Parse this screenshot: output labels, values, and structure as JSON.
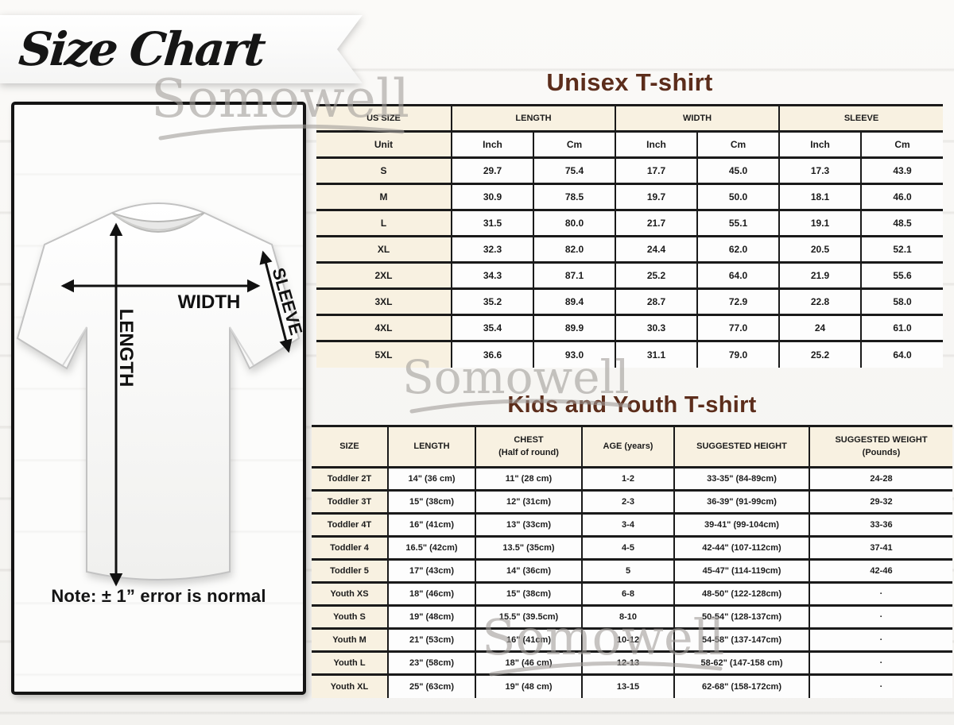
{
  "page_title": "Size Chart",
  "brand_watermark": "Somowell",
  "colors": {
    "title_brown": "#5c2d1b",
    "cream_cell": "#f8f1e1",
    "table_line": "#1a1a1a",
    "watermark_gray": "#a29e9a"
  },
  "diagram": {
    "width_label": "WIDTH",
    "length_label": "LENGTH",
    "sleeve_label": "SLEEVE",
    "note": "Note: ± 1” error is normal"
  },
  "unisex_table": {
    "title": "Unisex T-shirt",
    "col_groups": [
      "US SIZE",
      "LENGTH",
      "WIDTH",
      "SLEEVE"
    ],
    "unit_label": "Unit",
    "units": [
      "Inch",
      "Cm",
      "Inch",
      "Cm",
      "Inch",
      "Cm"
    ],
    "rows": [
      {
        "size": "S",
        "values": [
          "29.7",
          "75.4",
          "17.7",
          "45.0",
          "17.3",
          "43.9"
        ]
      },
      {
        "size": "M",
        "values": [
          "30.9",
          "78.5",
          "19.7",
          "50.0",
          "18.1",
          "46.0"
        ]
      },
      {
        "size": "L",
        "values": [
          "31.5",
          "80.0",
          "21.7",
          "55.1",
          "19.1",
          "48.5"
        ]
      },
      {
        "size": "XL",
        "values": [
          "32.3",
          "82.0",
          "24.4",
          "62.0",
          "20.5",
          "52.1"
        ]
      },
      {
        "size": "2XL",
        "values": [
          "34.3",
          "87.1",
          "25.2",
          "64.0",
          "21.9",
          "55.6"
        ]
      },
      {
        "size": "3XL",
        "values": [
          "35.2",
          "89.4",
          "28.7",
          "72.9",
          "22.8",
          "58.0"
        ]
      },
      {
        "size": "4XL",
        "values": [
          "35.4",
          "89.9",
          "30.3",
          "77.0",
          "24",
          "61.0"
        ]
      },
      {
        "size": "5XL",
        "values": [
          "36.6",
          "93.0",
          "31.1",
          "79.0",
          "25.2",
          "64.0"
        ]
      }
    ]
  },
  "kids_table": {
    "title": "Kids and Youth T-shirt",
    "headers": [
      {
        "line1": "SIZE",
        "line2": ""
      },
      {
        "line1": "LENGTH",
        "line2": ""
      },
      {
        "line1": "CHEST",
        "line2": "(Half of round)"
      },
      {
        "line1": "AGE (years)",
        "line2": ""
      },
      {
        "line1": "SUGGESTED HEIGHT",
        "line2": ""
      },
      {
        "line1": "SUGGESTED WEIGHT",
        "line2": "(Pounds)"
      }
    ],
    "rows": [
      {
        "size": "Toddler 2T",
        "values": [
          "14\" (36 cm)",
          "11\" (28 cm)",
          "1-2",
          "33-35\" (84-89cm)",
          "24-28"
        ]
      },
      {
        "size": "Toddler 3T",
        "values": [
          "15\" (38cm)",
          "12\" (31cm)",
          "2-3",
          "36-39\" (91-99cm)",
          "29-32"
        ]
      },
      {
        "size": "Toddler 4T",
        "values": [
          "16\" (41cm)",
          "13\" (33cm)",
          "3-4",
          "39-41\" (99-104cm)",
          "33-36"
        ]
      },
      {
        "size": "Toddler 4",
        "values": [
          "16.5\" (42cm)",
          "13.5\" (35cm)",
          "4-5",
          "42-44\" (107-112cm)",
          "37-41"
        ]
      },
      {
        "size": "Toddler 5",
        "values": [
          "17\" (43cm)",
          "14\" (36cm)",
          "5",
          "45-47\" (114-119cm)",
          "42-46"
        ]
      },
      {
        "size": "Youth XS",
        "values": [
          "18\" (46cm)",
          "15\" (38cm)",
          "6-8",
          "48-50\" (122-128cm)",
          "·"
        ]
      },
      {
        "size": "Youth S",
        "values": [
          "19\" (48cm)",
          "15.5\" (39.5cm)",
          "8-10",
          "50-54\" (128-137cm)",
          "·"
        ]
      },
      {
        "size": "Youth M",
        "values": [
          "21\" (53cm)",
          "16\" (41cm)",
          "10-12",
          "54-58\" (137-147cm)",
          "·"
        ]
      },
      {
        "size": "Youth L",
        "values": [
          "23\" (58cm)",
          "18\" (46 cm)",
          "12-13",
          "58-62\" (147-158 cm)",
          "·"
        ]
      },
      {
        "size": "Youth XL",
        "values": [
          "25\" (63cm)",
          "19\" (48 cm)",
          "13-15",
          "62-68\" (158-172cm)",
          "·"
        ]
      }
    ]
  }
}
